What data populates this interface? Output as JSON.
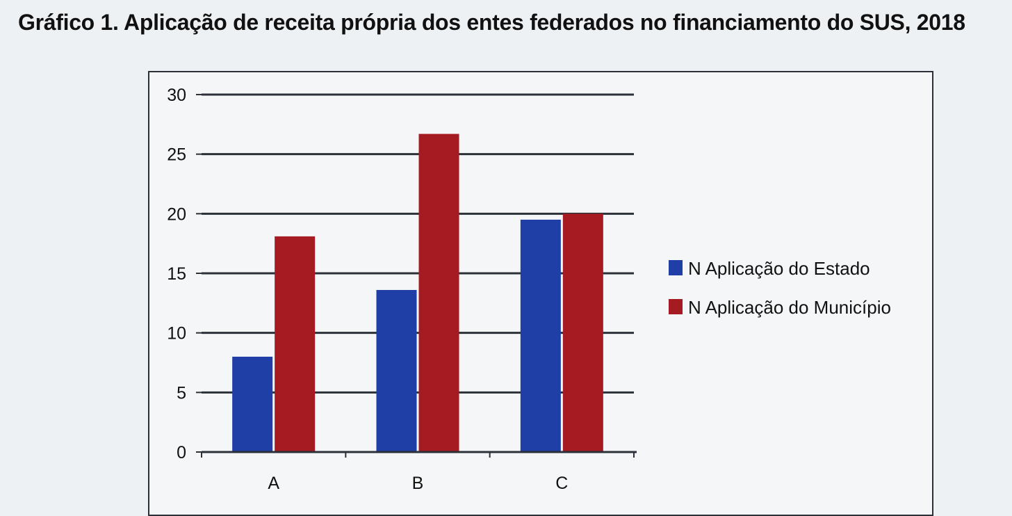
{
  "chart_data": {
    "type": "bar",
    "title": "Gráfico 1. Aplicação de receita própria dos entes federados no financiamento do SUS, 2018",
    "categories": [
      "A",
      "B",
      "C"
    ],
    "series": [
      {
        "name": "N Aplicação do Estado",
        "color": "#1f3fa6",
        "values": [
          8,
          13.6,
          19.5
        ]
      },
      {
        "name": "N Aplicação do Município",
        "color": "#a61b22",
        "values": [
          18.1,
          26.7,
          20
        ]
      }
    ],
    "xlabel": "",
    "ylabel": "",
    "ylim": [
      0,
      30
    ],
    "yticks": [
      0,
      5,
      10,
      15,
      20,
      25,
      30
    ],
    "grid": true,
    "legend_position": "right"
  }
}
